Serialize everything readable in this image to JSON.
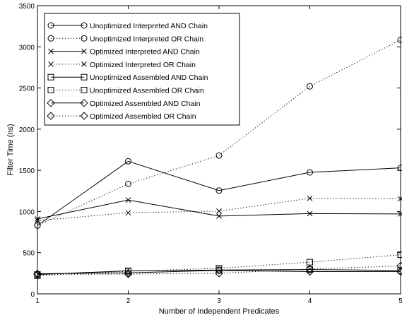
{
  "chart_data": {
    "type": "line",
    "title": "",
    "xlabel": "Number of Independent Predicates",
    "ylabel": "Filter Time (ns)",
    "x": [
      1,
      2,
      3,
      4,
      5
    ],
    "xlim": [
      1,
      5
    ],
    "ylim": [
      0,
      3500
    ],
    "xticks": [
      "1",
      "2",
      "3",
      "4",
      "5"
    ],
    "yticks": [
      "0",
      "500",
      "1000",
      "1500",
      "2000",
      "2500",
      "3000",
      "3500"
    ],
    "grid": false,
    "legend_position": "top-left",
    "series": [
      {
        "name": "Unoptimized Interpreted AND Chain",
        "values": [
          830,
          1610,
          1255,
          1475,
          1530
        ],
        "line": "solid",
        "marker": "circle"
      },
      {
        "name": "Unoptimized Interpreted OR Chain",
        "values": [
          830,
          1335,
          1680,
          2520,
          3085
        ],
        "line": "dotted",
        "marker": "circle"
      },
      {
        "name": "Optimized Interpreted AND Chain",
        "values": [
          910,
          1140,
          945,
          975,
          970
        ],
        "line": "solid",
        "marker": "x"
      },
      {
        "name": "Optimized Interpreted OR Chain",
        "values": [
          890,
          985,
          1005,
          1160,
          1155
        ],
        "line": "dotted",
        "marker": "x"
      },
      {
        "name": "Unoptimized Assembled AND Chain",
        "values": [
          235,
          280,
          290,
          295,
          285
        ],
        "line": "solid",
        "marker": "square"
      },
      {
        "name": "Unoptimized Assembled OR Chain",
        "values": [
          220,
          275,
          310,
          385,
          475
        ],
        "line": "dotted",
        "marker": "square"
      },
      {
        "name": "Optimized Assembled AND Chain",
        "values": [
          245,
          255,
          285,
          270,
          270
        ],
        "line": "solid",
        "marker": "diamond"
      },
      {
        "name": "Optimized Assembled OR Chain",
        "values": [
          235,
          240,
          250,
          300,
          340
        ],
        "line": "dotted",
        "marker": "diamond"
      }
    ]
  }
}
